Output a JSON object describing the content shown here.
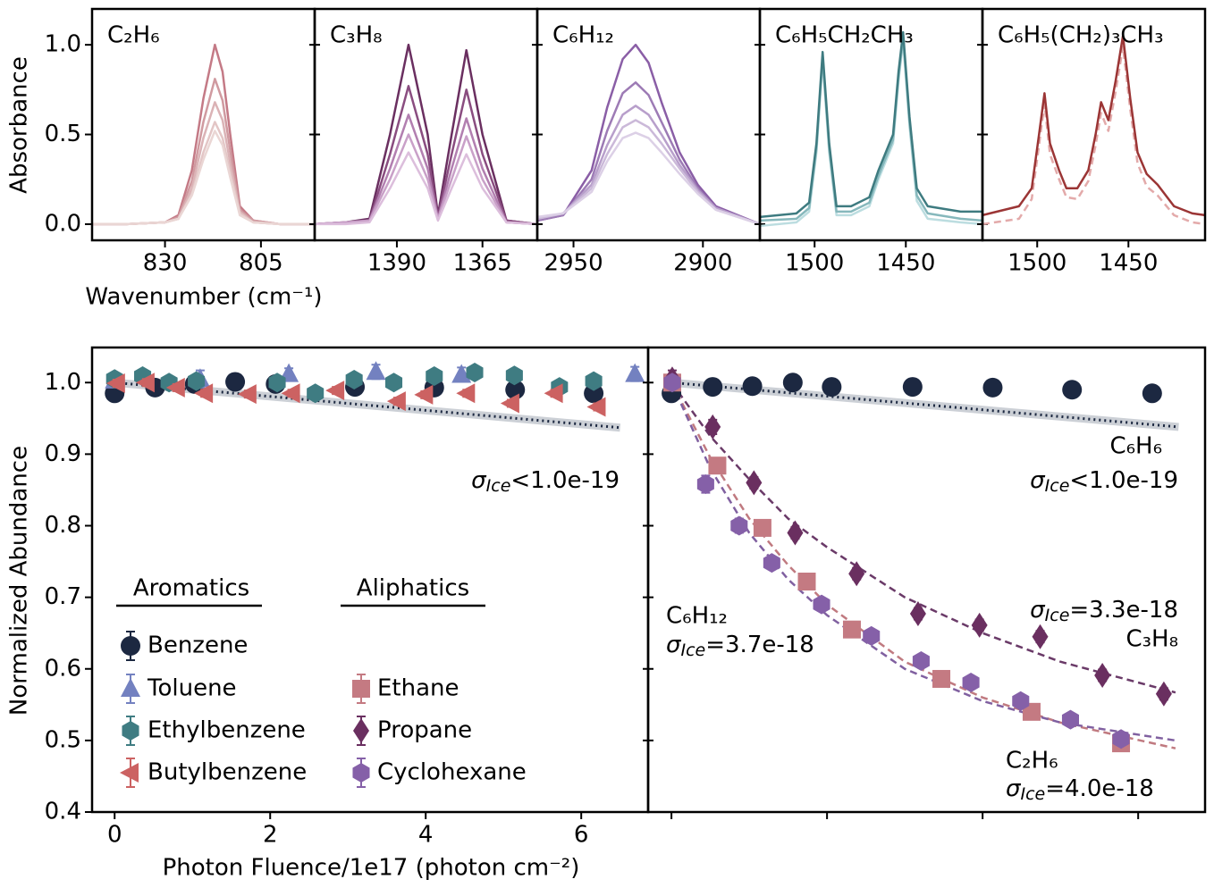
{
  "chart_data": [
    {
      "type": "line",
      "title": "C₂H₆",
      "xlabel": "Wavenumber (cm⁻¹)",
      "ylabel": "Absorbance",
      "xlim": [
        849,
        791
      ],
      "xticks": [
        830,
        805
      ],
      "ylim": [
        -0.09,
        1.2
      ],
      "yticks": [
        {
          "value": 0,
          "label": "0.0"
        },
        {
          "value": 0.5,
          "label": "0.5"
        },
        {
          "value": 1,
          "label": "1.0"
        }
      ],
      "x": [
        849,
        840,
        830,
        826.5,
        823,
        820,
        817,
        815,
        813,
        810.5,
        807,
        800,
        791
      ],
      "series": [
        {
          "color": "#c47a86",
          "values": [
            0,
            0,
            0.01,
            0.05,
            0.3,
            0.7,
            1.0,
            0.85,
            0.5,
            0.1,
            0.02,
            0,
            0
          ]
        },
        {
          "color": "#d09aa0",
          "values": [
            0,
            0,
            0.01,
            0.04,
            0.24,
            0.57,
            0.81,
            0.69,
            0.41,
            0.08,
            0.02,
            0,
            0
          ]
        },
        {
          "color": "#dbb3b6",
          "values": [
            0,
            0,
            0.01,
            0.03,
            0.2,
            0.48,
            0.68,
            0.58,
            0.34,
            0.07,
            0.01,
            0,
            0
          ]
        },
        {
          "color": "#e3c6c6",
          "values": [
            0,
            0,
            0.01,
            0.03,
            0.17,
            0.4,
            0.57,
            0.48,
            0.29,
            0.06,
            0.01,
            0,
            0
          ]
        },
        {
          "color": "#ead6d4",
          "values": [
            0,
            0,
            0.01,
            0.03,
            0.16,
            0.36,
            0.52,
            0.44,
            0.26,
            0.05,
            0.01,
            0,
            0
          ]
        }
      ]
    },
    {
      "type": "line",
      "title": "C₃H₈",
      "xlim": [
        1414,
        1349
      ],
      "xticks": [
        1390,
        1365
      ],
      "x": [
        1414,
        1405,
        1398,
        1392,
        1386.6,
        1381,
        1378,
        1374,
        1369.7,
        1365,
        1358,
        1349
      ],
      "series": [
        {
          "color": "#6a2f60",
          "values": [
            0,
            0.01,
            0.03,
            0.5,
            1.0,
            0.5,
            0.05,
            0.5,
            0.97,
            0.5,
            0.02,
            0
          ]
        },
        {
          "color": "#8a4d80",
          "values": [
            0,
            0.01,
            0.02,
            0.39,
            0.77,
            0.39,
            0.04,
            0.39,
            0.75,
            0.39,
            0.02,
            0
          ]
        },
        {
          "color": "#b27fb0",
          "values": [
            0,
            0.01,
            0.02,
            0.31,
            0.61,
            0.31,
            0.03,
            0.31,
            0.59,
            0.31,
            0.01,
            0
          ]
        },
        {
          "color": "#c9a0c8",
          "values": [
            0,
            0.01,
            0.02,
            0.25,
            0.5,
            0.25,
            0.03,
            0.25,
            0.49,
            0.25,
            0.01,
            0
          ]
        },
        {
          "color": "#dcbedc",
          "values": [
            0,
            0,
            0.01,
            0.2,
            0.4,
            0.2,
            0.02,
            0.2,
            0.39,
            0.2,
            0.01,
            0
          ]
        }
      ]
    },
    {
      "type": "line",
      "title": "C₆H₁₂",
      "xlim": [
        2964,
        2878
      ],
      "xticks": [
        2950,
        2900
      ],
      "x": [
        2964,
        2954,
        2943,
        2937,
        2931,
        2926,
        2921,
        2916,
        2909,
        2902,
        2895,
        2878
      ],
      "series": [
        {
          "color": "#8a5ea6",
          "values": [
            0.02,
            0.05,
            0.3,
            0.65,
            0.92,
            1.0,
            0.9,
            0.68,
            0.4,
            0.22,
            0.1,
            0
          ]
        },
        {
          "color": "#9d7bb5",
          "values": [
            0.02,
            0.05,
            0.25,
            0.52,
            0.73,
            0.79,
            0.72,
            0.57,
            0.36,
            0.2,
            0.09,
            0
          ]
        },
        {
          "color": "#b89fcb",
          "values": [
            0.03,
            0.06,
            0.22,
            0.44,
            0.61,
            0.66,
            0.61,
            0.5,
            0.33,
            0.19,
            0.09,
            0
          ]
        },
        {
          "color": "#cbb9d9",
          "values": [
            0.03,
            0.06,
            0.2,
            0.39,
            0.54,
            0.58,
            0.54,
            0.45,
            0.31,
            0.18,
            0.08,
            0
          ]
        },
        {
          "color": "#dcd0e6",
          "values": [
            0.04,
            0.06,
            0.18,
            0.35,
            0.48,
            0.51,
            0.48,
            0.4,
            0.28,
            0.17,
            0.08,
            0
          ]
        }
      ]
    },
    {
      "type": "line",
      "title": "C₆H₅CH₂CH₃",
      "xlim": [
        1530,
        1408
      ],
      "xticks": [
        1500,
        1450
      ],
      "x": [
        1530,
        1510,
        1503,
        1499,
        1495.6,
        1492,
        1488,
        1480,
        1470,
        1465,
        1461,
        1457,
        1454,
        1451.5,
        1448,
        1444,
        1438,
        1420,
        1408
      ],
      "series": [
        {
          "color": "#bcdde0",
          "values": [
            -0.01,
            0.01,
            0.07,
            0.4,
            0.91,
            0.4,
            0.05,
            0.05,
            0.1,
            0.25,
            0.35,
            0.45,
            0.8,
            1.02,
            0.55,
            0.13,
            0.03,
            0.01,
            0.0
          ]
        },
        {
          "color": "#86b8bc",
          "values": [
            0.02,
            0.03,
            0.09,
            0.42,
            0.93,
            0.42,
            0.07,
            0.07,
            0.12,
            0.27,
            0.37,
            0.47,
            0.82,
            1.04,
            0.57,
            0.16,
            0.06,
            0.03,
            0.02
          ]
        },
        {
          "color": "#3e7b80",
          "values": [
            0.04,
            0.06,
            0.12,
            0.45,
            0.96,
            0.45,
            0.1,
            0.1,
            0.15,
            0.3,
            0.4,
            0.5,
            0.85,
            1.07,
            0.6,
            0.2,
            0.1,
            0.07,
            0.07
          ]
        }
      ]
    },
    {
      "type": "line",
      "title": "C₆H₅(CH₂)₃CH₃",
      "xlim": [
        1530,
        1408
      ],
      "xticks": [
        1500,
        1450
      ],
      "x": [
        1530,
        1510,
        1503,
        1499,
        1496,
        1493,
        1488,
        1484,
        1478,
        1472,
        1468,
        1465,
        1461,
        1457,
        1453,
        1449,
        1445,
        1440,
        1434,
        1425,
        1415,
        1408
      ],
      "series": [
        {
          "color": "#e3aaaa",
          "dash": true,
          "values": [
            0.0,
            0.03,
            0.14,
            0.44,
            0.67,
            0.39,
            0.25,
            0.15,
            0.14,
            0.24,
            0.44,
            0.62,
            0.52,
            0.74,
            0.99,
            0.64,
            0.34,
            0.21,
            0.16,
            0.05,
            0.01,
            0.0
          ]
        },
        {
          "color": "#9b3535",
          "values": [
            0.05,
            0.1,
            0.2,
            0.5,
            0.73,
            0.45,
            0.3,
            0.2,
            0.2,
            0.3,
            0.5,
            0.68,
            0.58,
            0.8,
            1.05,
            0.7,
            0.4,
            0.28,
            0.22,
            0.1,
            0.06,
            0.05
          ]
        }
      ]
    },
    {
      "type": "scatter",
      "xlabel": "Photon Fluence/1e17 (photon cm⁻²)",
      "ylabel": "Normalized Abundance",
      "xlim": [
        -0.29,
        6.86
      ],
      "xticks": [
        0,
        2,
        4,
        6
      ],
      "ylim": [
        0.4,
        1.049
      ],
      "yticks": [
        0.4,
        0.5,
        0.6,
        0.7,
        0.8,
        0.9,
        {
          "value": 1.0,
          "label": "1.0"
        }
      ],
      "legend_titles": [
        "Aromatics",
        "Aliphatics"
      ],
      "annotations": [
        {
          "symbol": "σ",
          "sub": "Ice",
          "text": "<1.0e-19"
        }
      ],
      "series": [
        {
          "color": "#aab0bb",
          "line": "dotted",
          "band": true,
          "x": [
            0,
            6.5
          ],
          "values": [
            1.0,
            0.937
          ]
        },
        {
          "name": "Benzene",
          "color": "#1c2841",
          "marker": "circle",
          "x": [
            0,
            0.52,
            1.03,
            1.55,
            2.07,
            3.09,
            4.11,
            5.15,
            6.16
          ],
          "values": [
            0.985,
            0.993,
            0.998,
            1.001,
            0.998,
            0.994,
            0.993,
            0.99,
            0.985
          ],
          "errors": [
            0.004,
            0.004,
            0.004,
            0.004,
            0.004,
            0.004,
            0.004,
            0.004,
            0.004
          ]
        },
        {
          "name": "Toluene",
          "color": "#7381c0",
          "marker": "triangle-up",
          "x": [
            0,
            1.1,
            2.24,
            3.36,
            4.46,
            6.69
          ],
          "values": [
            1.003,
            1.005,
            1.012,
            1.015,
            1.011,
            1.012
          ],
          "errors": [
            0.008,
            0.012,
            0.008,
            0.01,
            0.01,
            0.01
          ]
        },
        {
          "name": "Ethylbenzene",
          "color": "#3f7c82",
          "marker": "hexagon",
          "x": [
            0,
            0.36,
            0.7,
            1.05,
            2.09,
            2.58,
            3.08,
            3.59,
            4.11,
            4.63,
            5.14,
            5.72,
            6.16
          ],
          "values": [
            1.005,
            1.009,
            1.0,
            1.002,
            1.0,
            0.985,
            1.004,
            1.0,
            1.009,
            1.014,
            1.01,
            0.994,
            1.002
          ],
          "errors": [
            0.005,
            0.005,
            0.005,
            0.005,
            0.005,
            0.005,
            0.005,
            0.005,
            0.005,
            0.005,
            0.005,
            0.005,
            0.005
          ]
        },
        {
          "name": "Butylbenzene",
          "color": "#cc6262",
          "marker": "triangle-left",
          "x": [
            0.03,
            0.41,
            0.8,
            1.16,
            1.72,
            2.28,
            2.85,
            3.64,
            3.99,
            4.53,
            5.1,
            5.66,
            6.21
          ],
          "values": [
            0.999,
            1.0,
            0.993,
            0.985,
            0.984,
            0.985,
            0.989,
            0.974,
            0.983,
            0.985,
            0.971,
            0.985,
            0.966
          ],
          "errors": [
            0.005,
            0.005,
            0.005,
            0.005,
            0.005,
            0.005,
            0.005,
            0.005,
            0.005,
            0.005,
            0.005,
            0.005,
            0.005
          ]
        }
      ]
    },
    {
      "type": "scatter",
      "xlim": [
        -0.3,
        6.86
      ],
      "xticks": [
        0,
        2,
        4,
        6
      ],
      "xtick_labels": false,
      "annotations": [
        {
          "text": "C₆H₆"
        },
        {
          "symbol": "σ",
          "sub": "Ice",
          "text": "<1.0e-19"
        },
        {
          "symbol": "σ",
          "sub": "Ice",
          "text": "=3.3e-18"
        },
        {
          "text": "C₃H₈"
        },
        {
          "text": "C₆H₁₂"
        },
        {
          "symbol": "σ",
          "sub": "Ice",
          "text": "=3.7e-18"
        },
        {
          "text": "C₂H₆"
        },
        {
          "symbol": "σ",
          "sub": "Ice",
          "text": "=4.0e-18"
        }
      ],
      "series": [
        {
          "color": "#aab0bb",
          "line": "dotted",
          "band": true,
          "x": [
            0,
            6.52
          ],
          "values": [
            1.0,
            0.938
          ]
        },
        {
          "color": "#6a3a68",
          "line": "dashed",
          "x": [
            0,
            0.5,
            1,
            1.5,
            2,
            3,
            4,
            5,
            6.48
          ],
          "values": [
            1.0,
            0.925,
            0.865,
            0.81,
            0.77,
            0.7,
            0.65,
            0.61,
            0.567
          ]
        },
        {
          "color": "#c07a80",
          "line": "dashed",
          "x": [
            0,
            0.5,
            1,
            1.5,
            2,
            3,
            4,
            5,
            6.48
          ],
          "values": [
            1.0,
            0.895,
            0.81,
            0.745,
            0.69,
            0.61,
            0.56,
            0.525,
            0.489
          ]
        },
        {
          "color": "#8060a0",
          "line": "dashed",
          "x": [
            0,
            0.5,
            1,
            1.5,
            2,
            3,
            4,
            5,
            6.48
          ],
          "values": [
            1.0,
            0.88,
            0.79,
            0.725,
            0.675,
            0.6,
            0.555,
            0.525,
            0.5
          ]
        },
        {
          "color": "#1c2841",
          "marker": "circle",
          "x": [
            0,
            0.53,
            1.04,
            1.56,
            2.06,
            3.1,
            4.13,
            5.15,
            6.18
          ],
          "values": [
            0.985,
            0.994,
            0.995,
            1.0,
            0.994,
            0.994,
            0.993,
            0.99,
            0.985
          ],
          "errors": [
            0.004,
            0.004,
            0.004,
            0.004,
            0.004,
            0.004,
            0.004,
            0.004,
            0.004
          ]
        },
        {
          "name": "Ethane",
          "color": "#c47a82",
          "marker": "square",
          "x": [
            0.01,
            0.59,
            1.17,
            1.74,
            2.32,
            3.47,
            4.63,
            5.78
          ],
          "values": [
            1.0,
            0.884,
            0.797,
            0.722,
            0.655,
            0.586,
            0.54,
            0.496
          ],
          "errors": [
            0.005,
            0.005,
            0.005,
            0.005,
            0.005,
            0.005,
            0.005,
            0.005
          ]
        },
        {
          "name": "Propane",
          "color": "#6a2f60",
          "marker": "diamond",
          "x": [
            0.01,
            0.53,
            1.06,
            1.59,
            2.38,
            3.17,
            3.96,
            4.74,
            5.54,
            6.33
          ],
          "values": [
            1.005,
            0.938,
            0.86,
            0.79,
            0.733,
            0.677,
            0.661,
            0.645,
            0.591,
            0.565
          ],
          "errors": [
            0.012,
            0.01,
            0.008,
            0.008,
            0.008,
            0.008,
            0.008,
            0.008,
            0.008,
            0.008
          ]
        },
        {
          "name": "Cyclohexane",
          "color": "#8560a8",
          "marker": "hexagon",
          "x": [
            0.01,
            0.44,
            0.87,
            1.29,
            1.93,
            2.57,
            3.21,
            3.85,
            4.49,
            5.13,
            5.78
          ],
          "values": [
            1.0,
            0.858,
            0.8,
            0.748,
            0.69,
            0.646,
            0.611,
            0.581,
            0.555,
            0.529,
            0.502
          ],
          "errors": [
            0.006,
            0.012,
            0.01,
            0.008,
            0.008,
            0.008,
            0.008,
            0.008,
            0.008,
            0.008,
            0.008
          ]
        }
      ]
    }
  ]
}
